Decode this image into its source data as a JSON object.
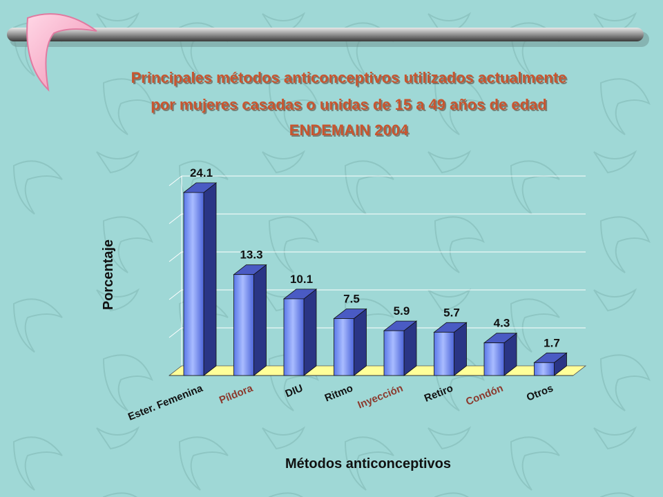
{
  "slide": {
    "title_lines": [
      "Principales métodos anticonceptivos utilizados actualmente",
      "por mujeres casadas o unidas de 15 a 49 años de edad",
      "ENDEMAIN 2004"
    ]
  },
  "colors": {
    "background": "#9fd8d6",
    "title": "#c8552f",
    "bar_front": "#7f9cf5",
    "bar_side": "#2a3585",
    "bar_top": "#4a5bc4",
    "floor": "#ffff99",
    "grid": "#ffffff",
    "label_dark": "#111111",
    "label_brown": "#8b3a2e"
  },
  "chart_data": {
    "type": "bar",
    "title": "Principales métodos anticonceptivos utilizados actualmente por mujeres casadas o unidas de 15 a 49 años de edad ENDEMAIN 2004",
    "xlabel": "Métodos anticonceptivos",
    "ylabel": "Porcentaje",
    "categories": [
      "Ester. Femenina",
      "Píldora",
      "DIU",
      "Ritmo",
      "Inyección",
      "Retiro",
      "Condón",
      "Otros"
    ],
    "values": [
      24.1,
      13.3,
      10.1,
      7.5,
      5.9,
      5.7,
      4.3,
      1.7
    ],
    "value_labels": [
      "24.1",
      "13.3",
      "10.1",
      "7.5",
      "5.9",
      "5.7",
      "4.3",
      "1.7"
    ],
    "category_label_colors": [
      "#111111",
      "#8b3a2e",
      "#111111",
      "#111111",
      "#8b3a2e",
      "#111111",
      "#8b3a2e",
      "#111111"
    ],
    "ylim": [
      0,
      25
    ],
    "grid": true,
    "style": "3d-bar"
  }
}
